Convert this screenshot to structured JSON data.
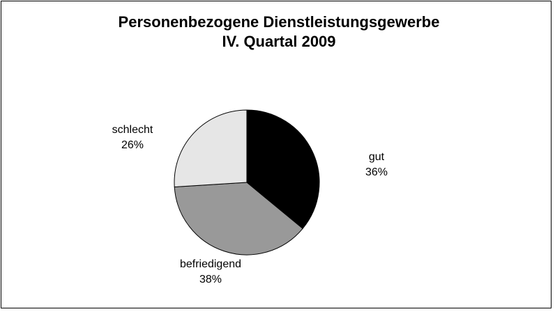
{
  "chart_data": {
    "type": "pie",
    "title": "Personenbezogene Dienstleistungsgewerbe",
    "subtitle": "IV. Quartal 2009",
    "categories": [
      "gut",
      "befriedigend",
      "schlecht"
    ],
    "values": [
      36,
      38,
      26
    ],
    "value_labels": [
      "36%",
      "38%",
      "26%"
    ],
    "colors": [
      "#000000",
      "#999999",
      "#e6e6e6"
    ]
  }
}
